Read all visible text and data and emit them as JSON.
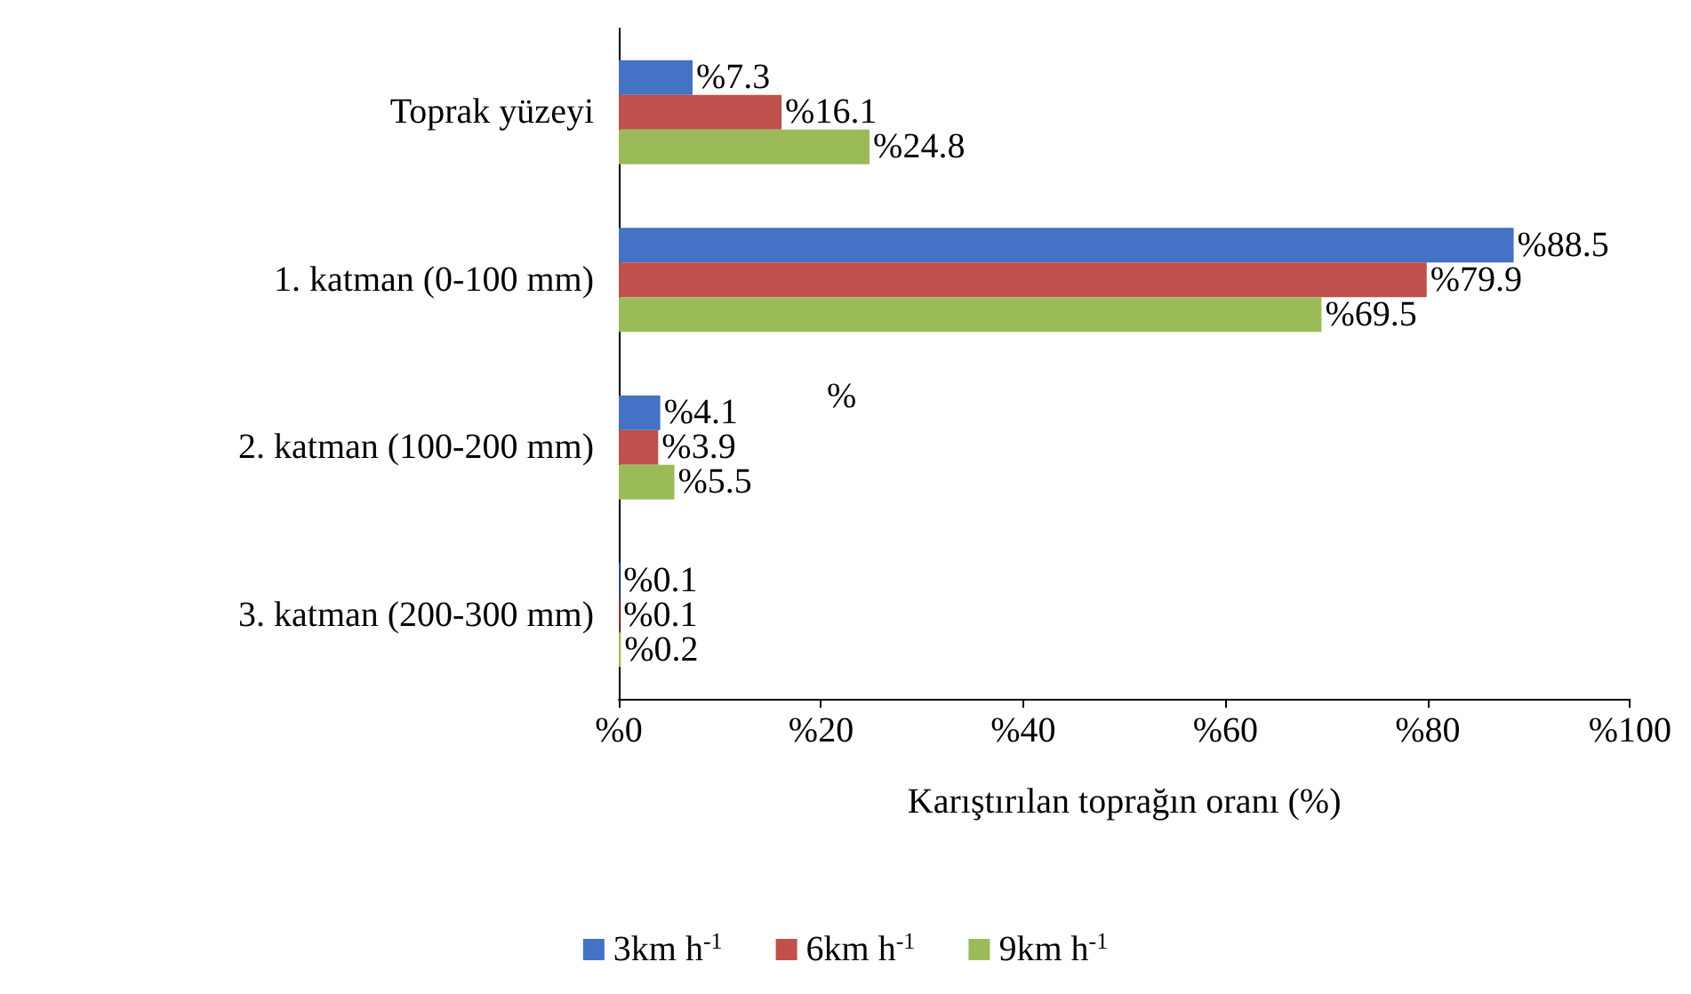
{
  "chart_data": {
    "type": "bar",
    "orientation": "horizontal",
    "categories": [
      "Toprak yüzeyi",
      "1. katman (0-100 mm)",
      "2. katman (100-200 mm)",
      "3. katman (200-300 mm)"
    ],
    "series": [
      {
        "name": "3km h$^{-1}$",
        "color": "#4472c4",
        "values": [
          7.3,
          88.5,
          4.1,
          0.1
        ],
        "value_labels": [
          "%7.3",
          "%88.5",
          "%4.1",
          "%0.1"
        ]
      },
      {
        "name": "6km h$^{-1}$",
        "color": "#c0504d",
        "values": [
          16.1,
          79.9,
          3.9,
          0.1
        ],
        "value_labels": [
          "%16.1",
          "%79.9",
          "%3.9",
          "%0.1"
        ]
      },
      {
        "name": "9km h$^{-1}$",
        "color": "#9bbb59",
        "values": [
          24.8,
          69.5,
          5.5,
          0.2
        ],
        "value_labels": [
          "%24.8",
          "%69.5",
          "%5.5",
          "%0.2"
        ]
      }
    ],
    "xlim": [
      0,
      100
    ],
    "xticks": [
      {
        "value": 0,
        "label": "%0"
      },
      {
        "value": 20,
        "label": "%20"
      },
      {
        "value": 40,
        "label": "%40"
      },
      {
        "value": 60,
        "label": "%60"
      },
      {
        "value": 80,
        "label": "%80"
      },
      {
        "value": 100,
        "label": "%100"
      }
    ],
    "xlabel": "Karıştırılan toprağın oranı (%)",
    "annotations": [
      "%"
    ],
    "grid": false,
    "legend": "bottom"
  }
}
